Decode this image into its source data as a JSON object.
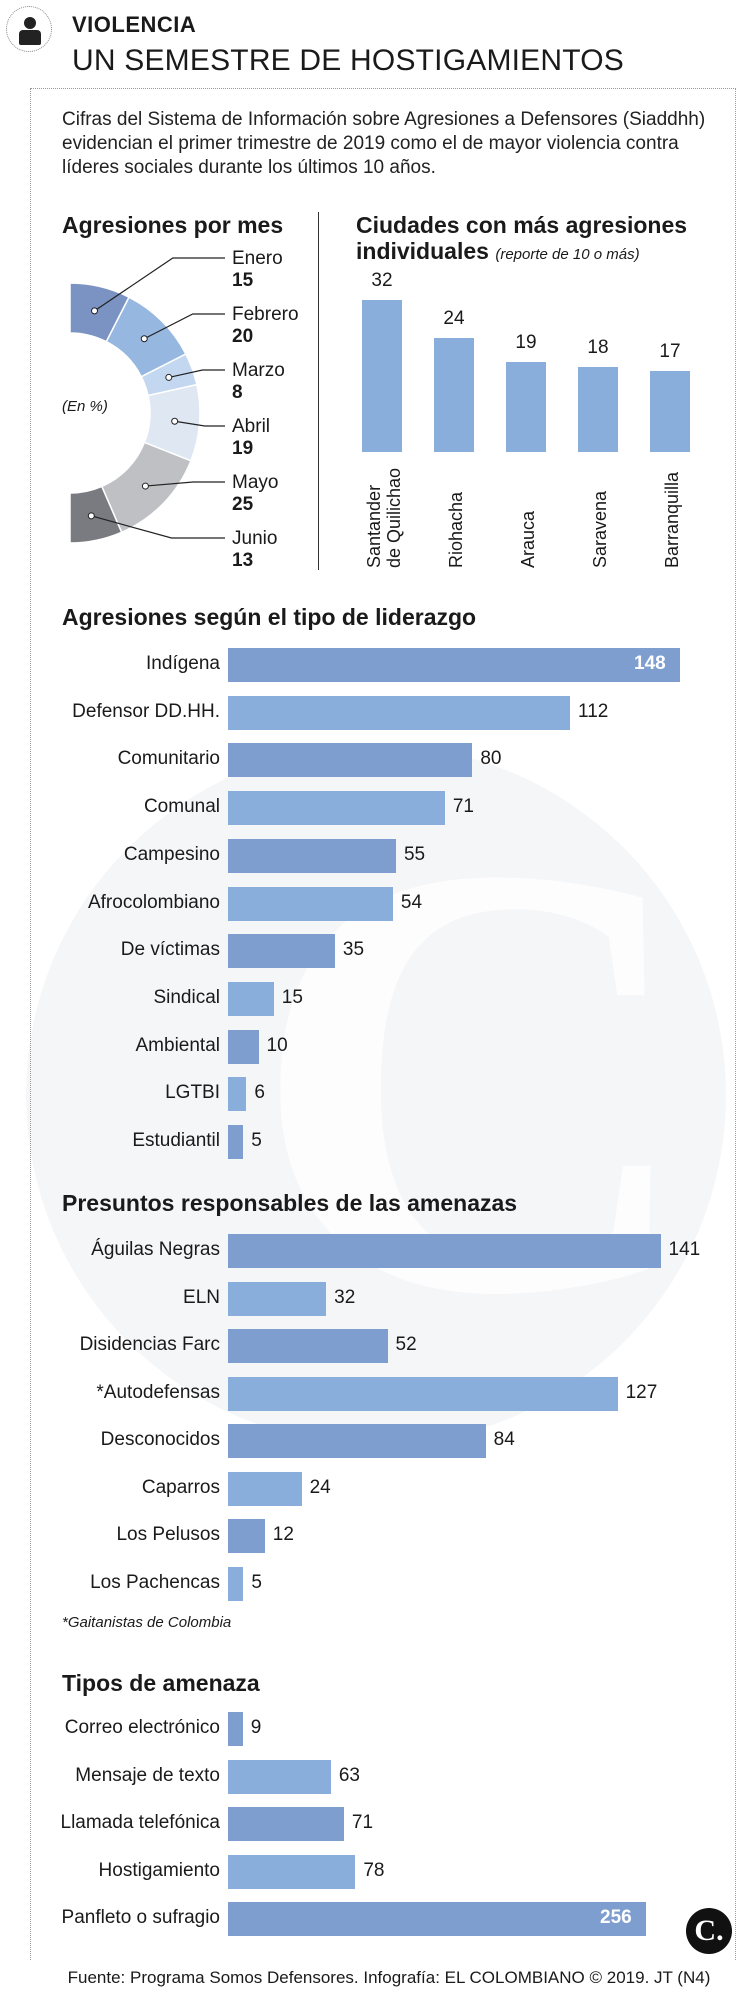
{
  "header": {
    "section": "VIOLENCIA",
    "title": "UN SEMESTRE DE HOSTIGAMIENTOS",
    "intro": "Cifras del Sistema de Información sobre Agresiones a Defensores (Siaddhh) evidencian el primer trimestre de 2019 como el de mayor violencia contra líderes sociales durante los últimos 10 años."
  },
  "colors": {
    "bar_blue": "#8aaedb",
    "bar_blue_dark": "#7e9ecf",
    "donut": [
      "#7b93c2",
      "#96b7e0",
      "#c3d8f0",
      "#dfe7f3",
      "#bfc0c3",
      "#7a7b80"
    ]
  },
  "footer": {
    "source": "Fuente: Programa Somos Defensores. Infografía: EL COLOMBIANO © 2019. JT (N4)",
    "logo": "C."
  },
  "chart_data": [
    {
      "type": "pie",
      "title": "Agresiones por mes",
      "unit_note": "(En %)",
      "categories": [
        "Enero",
        "Febrero",
        "Marzo",
        "Abril",
        "Mayo",
        "Junio"
      ],
      "values": [
        15,
        20,
        8,
        19,
        25,
        13
      ]
    },
    {
      "type": "bar",
      "title": "Ciudades con más agresiones individuales",
      "subtitle": "(reporte de 10 o más)",
      "categories": [
        "Santander de Quilichao",
        "Riohacha",
        "Arauca",
        "Saravena",
        "Barranquilla"
      ],
      "values": [
        32,
        24,
        19,
        18,
        17
      ],
      "ylim": [
        0,
        32
      ]
    },
    {
      "type": "bar",
      "title": "Agresiones según el tipo de liderazgo",
      "categories": [
        "Indígena",
        "Defensor DD.HH.",
        "Comunitario",
        "Comunal",
        "Campesino",
        "Afrocolombiano",
        "De víctimas",
        "Sindical",
        "Ambiental",
        "LGTBI",
        "Estudiantil"
      ],
      "values": [
        148,
        112,
        80,
        71,
        55,
        54,
        35,
        15,
        10,
        6,
        5
      ],
      "xlim": [
        0,
        148
      ]
    },
    {
      "type": "bar",
      "title": "Presuntos responsables de las amenazas",
      "categories": [
        "Águilas Negras",
        "ELN",
        "Disidencias Farc",
        "*Autodefensas",
        "Desconocidos",
        "Caparros",
        "Los Pelusos",
        "Los Pachencas"
      ],
      "values": [
        141,
        32,
        52,
        127,
        84,
        24,
        12,
        5
      ],
      "xlim": [
        0,
        148
      ],
      "footnote": "*Gaitanistas de Colombia"
    },
    {
      "type": "bar",
      "title": "Tipos de amenaza",
      "categories": [
        "Correo electrónico",
        "Mensaje de texto",
        "Llamada telefónica",
        "Hostigamiento",
        "Panfleto o sufragio"
      ],
      "values": [
        9,
        63,
        71,
        78,
        256
      ],
      "xlim": [
        0,
        256
      ]
    }
  ]
}
